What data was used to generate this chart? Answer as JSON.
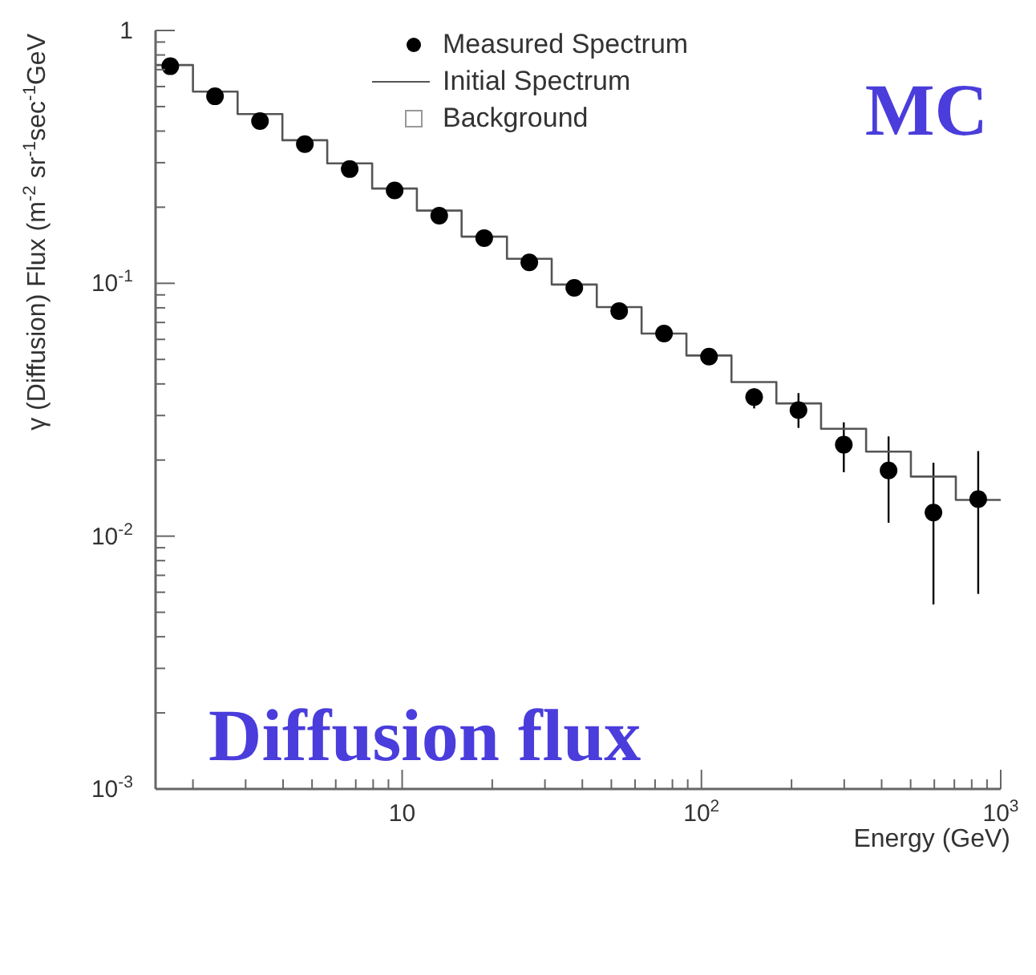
{
  "chart_data": {
    "type": "scatter",
    "xlabel": "Energy (GeV)",
    "ylabel": "γ (Diffusion) Flux (m$^{-2}$ sr$^{-1}$sec$^{-1}$GeV",
    "log": "xy",
    "legend": "top",
    "xlim": [
      1.5,
      1000
    ],
    "ylim": [
      0.001,
      1
    ],
    "xticks": [
      {
        "value": 2,
        "label": null
      },
      {
        "value": 3,
        "label": null
      },
      {
        "value": 4,
        "label": null
      },
      {
        "value": 5,
        "label": null
      },
      {
        "value": 6,
        "label": null
      },
      {
        "value": 7,
        "label": null
      },
      {
        "value": 8,
        "label": null
      },
      {
        "value": 9,
        "label": null
      },
      10,
      {
        "value": 20,
        "label": null
      },
      {
        "value": 30,
        "label": null
      },
      {
        "value": 40,
        "label": null
      },
      {
        "value": 50,
        "label": null
      },
      {
        "value": 60,
        "label": null
      },
      {
        "value": 70,
        "label": null
      },
      {
        "value": 80,
        "label": null
      },
      {
        "value": 90,
        "label": null
      },
      {
        "value": 100,
        "label": "10$^{2}$"
      },
      {
        "value": 200,
        "label": null
      },
      {
        "value": 300,
        "label": null
      },
      {
        "value": 400,
        "label": null
      },
      {
        "value": 500,
        "label": null
      },
      {
        "value": 600,
        "label": null
      },
      {
        "value": 700,
        "label": null
      },
      {
        "value": 800,
        "label": null
      },
      {
        "value": 900,
        "label": null
      },
      {
        "value": 1000,
        "label": "10$^{3}$"
      }
    ],
    "yticks": [
      {
        "value": 0.001,
        "label": "10$^{-3}$"
      },
      {
        "value": 0.002,
        "label": null
      },
      {
        "value": 0.003,
        "label": null
      },
      {
        "value": 0.004,
        "label": null
      },
      {
        "value": 0.005,
        "label": null
      },
      {
        "value": 0.006,
        "label": null
      },
      {
        "value": 0.007,
        "label": null
      },
      {
        "value": 0.008,
        "label": null
      },
      {
        "value": 0.009,
        "label": null
      },
      {
        "value": 0.01,
        "label": "10$^{-2}$"
      },
      {
        "value": 0.02,
        "label": null
      },
      {
        "value": 0.03,
        "label": null
      },
      {
        "value": 0.04,
        "label": null
      },
      {
        "value": 0.05,
        "label": null
      },
      {
        "value": 0.06,
        "label": null
      },
      {
        "value": 0.07,
        "label": null
      },
      {
        "value": 0.08,
        "label": null
      },
      {
        "value": 0.09,
        "label": null
      },
      {
        "value": 0.1,
        "label": "10$^{-1}$"
      },
      {
        "value": 0.2,
        "label": null
      },
      {
        "value": 0.3,
        "label": null
      },
      {
        "value": 0.4,
        "label": null
      },
      {
        "value": 0.5,
        "label": null
      },
      {
        "value": 0.6,
        "label": null
      },
      {
        "value": 0.7,
        "label": null
      },
      {
        "value": 0.8,
        "label": null
      },
      {
        "value": 0.9,
        "label": null
      },
      1
    ],
    "annotations": [
      "MC",
      "Diffusion flux"
    ],
    "series": [
      {
        "name": "Measured Spectrum",
        "marker": "circle",
        "color": "#000000",
        "x": [
          1.68,
          2.37,
          3.35,
          4.73,
          6.68,
          9.44,
          13.3,
          18.8,
          26.6,
          37.6,
          53.1,
          75.0,
          106,
          150,
          211,
          299,
          422,
          596,
          841
        ],
        "values": [
          0.722,
          0.549,
          0.438,
          0.355,
          0.283,
          0.233,
          0.185,
          0.151,
          0.121,
          0.0959,
          0.0777,
          0.0633,
          0.0513,
          0.0355,
          0.0315,
          0.023,
          0.0182,
          0.0124,
          0.014
        ],
        "errors": [
          null,
          null,
          null,
          null,
          null,
          null,
          null,
          null,
          null,
          null,
          null,
          null,
          null,
          [
            0.032,
            0.0384
          ],
          [
            0.0268,
            0.0368
          ],
          [
            0.0179,
            0.0282
          ],
          [
            0.0113,
            0.0248
          ],
          [
            0.00537,
            0.0195
          ],
          [
            0.00591,
            0.0217
          ]
        ]
      },
      {
        "name": "Initial Spectrum",
        "type": "step",
        "color": "#555555",
        "x": [
          1.5,
          2.0,
          2.82,
          3.98,
          5.62,
          7.94,
          11.2,
          15.8,
          22.4,
          31.6,
          44.7,
          63.1,
          89.1,
          126,
          178,
          251,
          355,
          501,
          708,
          1000
        ],
        "values": [
          0.73,
          0.573,
          0.467,
          0.368,
          0.298,
          0.237,
          0.194,
          0.153,
          0.125,
          0.0989,
          0.0805,
          0.0633,
          0.0518,
          0.0407,
          0.0335,
          0.0266,
          0.0216,
          0.0172,
          0.0139,
          0.0139
        ]
      },
      {
        "name": "Background",
        "type": "bar",
        "color": "#999999"
      }
    ]
  }
}
